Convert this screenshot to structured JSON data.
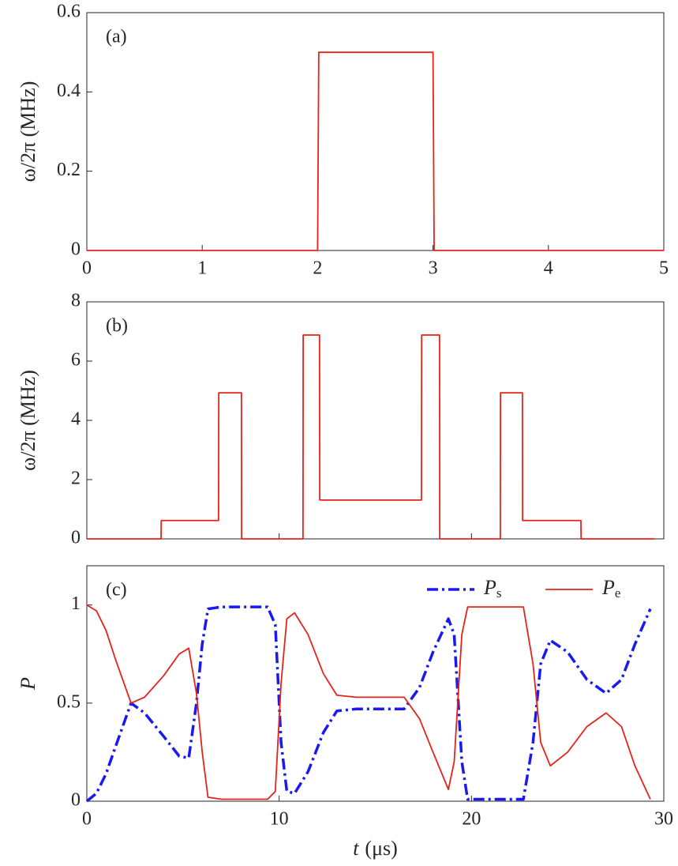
{
  "chart_data": [
    {
      "type": "line",
      "label": "(a)",
      "ylabel": "ω/2π (MHz)",
      "x": [
        0,
        2,
        2.01,
        3,
        3.01,
        5
      ],
      "series": [
        {
          "color": "#e8221b",
          "values": [
            0,
            0,
            0.5,
            0.5,
            0,
            0
          ]
        }
      ],
      "xlim": [
        0,
        5
      ],
      "xticks": [
        0,
        1,
        2,
        3,
        4,
        5
      ],
      "show_xtick_labels": true,
      "ylim": [
        0,
        0.6
      ],
      "yticks": [
        0,
        0.2,
        0.4,
        0.6
      ]
    },
    {
      "type": "line",
      "label": "(b)",
      "ylabel": "ω/2π (MHz)",
      "x": [
        0,
        3.86,
        3.87,
        6.85,
        6.86,
        8.04,
        8.05,
        11.24,
        11.25,
        12.1,
        12.11,
        17.4,
        17.41,
        18.34,
        18.35,
        21.5,
        21.51,
        22.65,
        22.66,
        25.69,
        25.7,
        29.5
      ],
      "series": [
        {
          "color": "#e8221b",
          "values": [
            0,
            0,
            0.62,
            0.62,
            4.93,
            4.93,
            0,
            0,
            6.88,
            6.88,
            1.31,
            1.31,
            6.88,
            6.88,
            0,
            0,
            4.93,
            4.93,
            0.62,
            0.62,
            0,
            0
          ]
        }
      ],
      "xlim": [
        0,
        30
      ],
      "xticks": [
        0,
        10,
        20,
        30
      ],
      "show_xtick_labels": false,
      "ylim": [
        0,
        8
      ],
      "yticks": [
        0,
        2,
        4,
        6,
        8
      ]
    },
    {
      "type": "line",
      "label": "(c)",
      "ylabel": "P",
      "xlabel_symbol": "t",
      "xlabel_unit": "(μs)",
      "x": [
        0,
        0.5,
        1,
        1.5,
        2.3,
        3,
        4,
        4.8,
        5.3,
        5.7,
        6.0,
        6.3,
        7,
        8,
        9.4,
        9.8,
        10.1,
        10.4,
        10.8,
        11.5,
        12.3,
        13,
        14,
        15,
        16.5,
        17.3,
        18,
        18.8,
        19.1,
        19.5,
        19.8,
        21,
        22.7,
        23.2,
        23.6,
        24.1,
        25,
        26,
        27,
        27.8,
        28.5,
        29.3
      ],
      "series": [
        {
          "name": "P",
          "subscript": "s",
          "color": "#1a1aef",
          "dash": "dashdot",
          "values": [
            0,
            0.04,
            0.14,
            0.28,
            0.5,
            0.45,
            0.33,
            0.23,
            0.22,
            0.5,
            0.8,
            0.98,
            0.99,
            0.99,
            0.99,
            0.9,
            0.3,
            0.05,
            0.04,
            0.15,
            0.35,
            0.46,
            0.47,
            0.47,
            0.47,
            0.58,
            0.76,
            0.93,
            0.85,
            0.2,
            0.01,
            0.01,
            0.01,
            0.3,
            0.7,
            0.82,
            0.76,
            0.62,
            0.55,
            0.62,
            0.8,
            0.98
          ]
        },
        {
          "name": "P",
          "subscript": "e",
          "color": "#e8221b",
          "dash": "solid",
          "values": [
            1,
            0.97,
            0.87,
            0.72,
            0.5,
            0.53,
            0.64,
            0.75,
            0.78,
            0.55,
            0.25,
            0.02,
            0.01,
            0.01,
            0.01,
            0.05,
            0.6,
            0.93,
            0.96,
            0.85,
            0.65,
            0.54,
            0.53,
            0.53,
            0.53,
            0.42,
            0.25,
            0.06,
            0.2,
            0.85,
            0.99,
            0.99,
            0.99,
            0.7,
            0.3,
            0.18,
            0.25,
            0.38,
            0.45,
            0.38,
            0.18,
            0.01
          ]
        }
      ],
      "xlim": [
        0,
        30
      ],
      "xticks": [
        0,
        10,
        20,
        30
      ],
      "show_xtick_labels": true,
      "ylim": [
        0,
        1.2
      ],
      "yticks": [
        0,
        0.5,
        1
      ],
      "legend": "top-right"
    }
  ]
}
